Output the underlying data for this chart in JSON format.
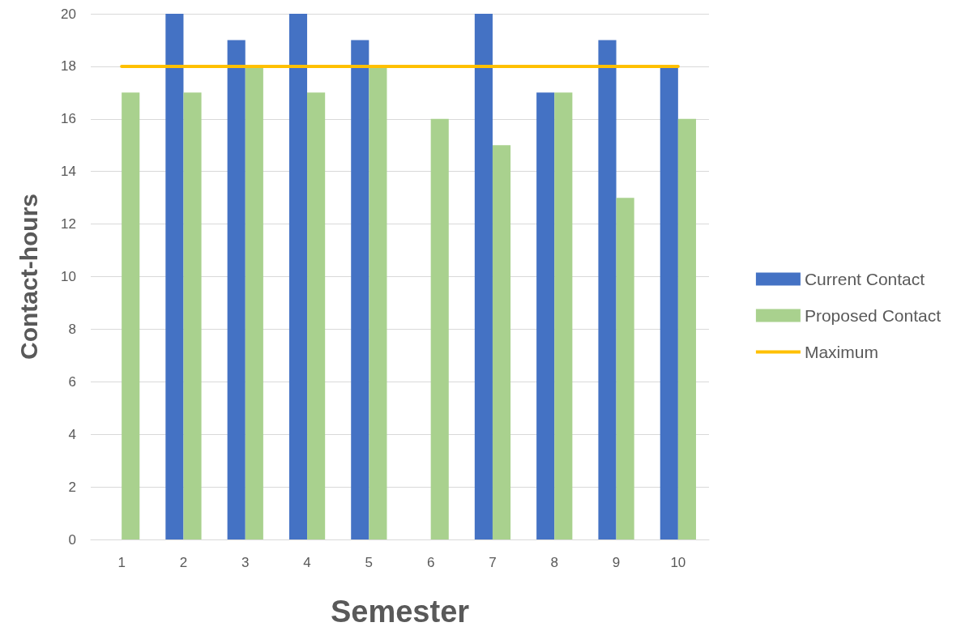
{
  "chart_data": {
    "type": "bar",
    "xlabel": "Semester",
    "ylabel": "Contact-hours",
    "categories": [
      "1",
      "2",
      "3",
      "4",
      "5",
      "6",
      "7",
      "8",
      "9",
      "10"
    ],
    "series": [
      {
        "name": "Current Contact",
        "color": "#4472c4",
        "values": [
          null,
          20,
          19,
          20,
          19,
          null,
          20,
          17,
          19,
          18
        ]
      },
      {
        "name": "Proposed Contact",
        "color": "#a9d18e",
        "values": [
          17,
          17,
          18,
          17,
          18,
          16,
          15,
          17,
          13,
          16
        ]
      },
      {
        "name": "Maximum",
        "type": "line",
        "color": "#ffc000",
        "values": [
          18,
          18,
          18,
          18,
          18,
          18,
          18,
          18,
          18,
          18
        ]
      }
    ],
    "ylim": [
      0,
      20
    ],
    "yticks": [
      0,
      2,
      4,
      6,
      8,
      10,
      12,
      14,
      16,
      18,
      20
    ],
    "grid": "y",
    "legend": "right",
    "marker": "none",
    "line_style": "solid"
  }
}
